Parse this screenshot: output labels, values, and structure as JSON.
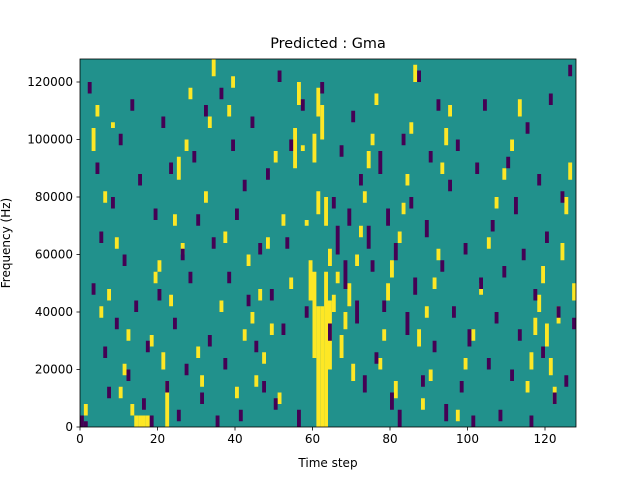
{
  "chart_data": {
    "type": "heatmap",
    "title": "Predicted : Gma",
    "xlabel": "Time step",
    "ylabel": "Frequency (Hz)",
    "xlim": [
      0,
      128
    ],
    "ylim": [
      0,
      128000
    ],
    "x_ticks": [
      0,
      20,
      40,
      60,
      80,
      100,
      120
    ],
    "y_ticks": [
      0,
      20000,
      40000,
      60000,
      80000,
      100000,
      120000
    ],
    "x_tick_labels": [
      "0",
      "20",
      "40",
      "60",
      "80",
      "100",
      "120"
    ],
    "y_tick_labels": [
      "0",
      "20000",
      "40000",
      "60000",
      "80000",
      "100000",
      "120000"
    ],
    "grid": false,
    "colors": {
      "background": "#21918c",
      "high": "#fde725",
      "low": "#440154"
    },
    "value_levels": {
      "background": 0,
      "high": 1,
      "low": -1
    },
    "cell_width_steps": 1,
    "cell_height_hz": 2000,
    "high_cells": [
      [
        61,
        0,
        42
      ],
      [
        62,
        0,
        42
      ],
      [
        63,
        0,
        54
      ],
      [
        60,
        24,
        54
      ],
      [
        64,
        20,
        44
      ],
      [
        59,
        44,
        58
      ],
      [
        58,
        70,
        72
      ],
      [
        64,
        56,
        62
      ],
      [
        61,
        74,
        82
      ],
      [
        63,
        70,
        80
      ],
      [
        60,
        92,
        102
      ],
      [
        62,
        100,
        112
      ],
      [
        61,
        108,
        118
      ],
      [
        55,
        90,
        104
      ],
      [
        56,
        112,
        120
      ],
      [
        57,
        96,
        98
      ],
      [
        1,
        4,
        8
      ],
      [
        3,
        96,
        104
      ],
      [
        4,
        108,
        112
      ],
      [
        5,
        38,
        42
      ],
      [
        6,
        78,
        82
      ],
      [
        7,
        44,
        48
      ],
      [
        8,
        104,
        106
      ],
      [
        9,
        62,
        66
      ],
      [
        10,
        10,
        14
      ],
      [
        11,
        18,
        22
      ],
      [
        12,
        30,
        34
      ],
      [
        13,
        4,
        8
      ],
      [
        14,
        0,
        4
      ],
      [
        15,
        0,
        4
      ],
      [
        16,
        0,
        4
      ],
      [
        17,
        0,
        4
      ],
      [
        18,
        28,
        32
      ],
      [
        19,
        50,
        54
      ],
      [
        20,
        54,
        58
      ],
      [
        21,
        20,
        26
      ],
      [
        22,
        0,
        16
      ],
      [
        23,
        42,
        46
      ],
      [
        24,
        70,
        74
      ],
      [
        25,
        86,
        94
      ],
      [
        26,
        60,
        64
      ],
      [
        27,
        96,
        100
      ],
      [
        28,
        114,
        118
      ],
      [
        30,
        24,
        28
      ],
      [
        31,
        14,
        18
      ],
      [
        32,
        78,
        82
      ],
      [
        33,
        104,
        108
      ],
      [
        34,
        122,
        128
      ],
      [
        36,
        40,
        44
      ],
      [
        37,
        64,
        68
      ],
      [
        38,
        108,
        112
      ],
      [
        39,
        118,
        122
      ],
      [
        40,
        10,
        14
      ],
      [
        42,
        30,
        34
      ],
      [
        43,
        56,
        60
      ],
      [
        44,
        36,
        40
      ],
      [
        45,
        14,
        18
      ],
      [
        46,
        44,
        48
      ],
      [
        47,
        22,
        26
      ],
      [
        48,
        62,
        66
      ],
      [
        49,
        32,
        36
      ],
      [
        50,
        92,
        96
      ],
      [
        51,
        8,
        12
      ],
      [
        52,
        70,
        74
      ],
      [
        54,
        48,
        52
      ],
      [
        65,
        40,
        46
      ],
      [
        66,
        50,
        54
      ],
      [
        67,
        24,
        32
      ],
      [
        68,
        34,
        40
      ],
      [
        69,
        42,
        50
      ],
      [
        70,
        16,
        22
      ],
      [
        71,
        56,
        60
      ],
      [
        72,
        66,
        70
      ],
      [
        73,
        78,
        82
      ],
      [
        74,
        90,
        96
      ],
      [
        75,
        98,
        102
      ],
      [
        76,
        112,
        116
      ],
      [
        77,
        20,
        24
      ],
      [
        78,
        30,
        34
      ],
      [
        79,
        44,
        50
      ],
      [
        80,
        52,
        58
      ],
      [
        81,
        10,
        16
      ],
      [
        82,
        64,
        68
      ],
      [
        83,
        74,
        78
      ],
      [
        84,
        84,
        88
      ],
      [
        85,
        102,
        106
      ],
      [
        86,
        120,
        126
      ],
      [
        87,
        28,
        34
      ],
      [
        88,
        6,
        10
      ],
      [
        89,
        38,
        42
      ],
      [
        90,
        16,
        20
      ],
      [
        91,
        48,
        52
      ],
      [
        92,
        58,
        62
      ],
      [
        93,
        88,
        92
      ],
      [
        94,
        98,
        104
      ],
      [
        95,
        108,
        112
      ],
      [
        97,
        2,
        6
      ],
      [
        99,
        20,
        24
      ],
      [
        101,
        30,
        34
      ],
      [
        103,
        46,
        50
      ],
      [
        105,
        62,
        66
      ],
      [
        107,
        76,
        80
      ],
      [
        109,
        86,
        90
      ],
      [
        111,
        96,
        100
      ],
      [
        113,
        108,
        114
      ],
      [
        115,
        12,
        16
      ],
      [
        116,
        20,
        26
      ],
      [
        117,
        32,
        38
      ],
      [
        118,
        40,
        46
      ],
      [
        119,
        50,
        56
      ],
      [
        120,
        28,
        36
      ],
      [
        121,
        18,
        24
      ],
      [
        122,
        8,
        14
      ],
      [
        123,
        36,
        42
      ],
      [
        124,
        58,
        64
      ],
      [
        125,
        74,
        80
      ],
      [
        126,
        86,
        92
      ],
      [
        127,
        44,
        50
      ]
    ],
    "low_cells": [
      [
        0,
        0,
        4
      ],
      [
        1,
        0,
        2
      ],
      [
        2,
        116,
        120
      ],
      [
        3,
        46,
        50
      ],
      [
        4,
        88,
        92
      ],
      [
        5,
        64,
        68
      ],
      [
        6,
        24,
        28
      ],
      [
        7,
        10,
        14
      ],
      [
        8,
        76,
        80
      ],
      [
        9,
        34,
        38
      ],
      [
        10,
        98,
        102
      ],
      [
        11,
        56,
        60
      ],
      [
        12,
        16,
        20
      ],
      [
        13,
        110,
        114
      ],
      [
        14,
        40,
        44
      ],
      [
        15,
        84,
        88
      ],
      [
        16,
        6,
        10
      ],
      [
        17,
        26,
        30
      ],
      [
        18,
        0,
        4
      ],
      [
        19,
        72,
        76
      ],
      [
        20,
        44,
        48
      ],
      [
        21,
        104,
        108
      ],
      [
        22,
        12,
        16
      ],
      [
        23,
        88,
        92
      ],
      [
        24,
        34,
        38
      ],
      [
        25,
        2,
        6
      ],
      [
        26,
        58,
        62
      ],
      [
        27,
        18,
        22
      ],
      [
        28,
        50,
        54
      ],
      [
        29,
        92,
        96
      ],
      [
        30,
        70,
        74
      ],
      [
        31,
        8,
        12
      ],
      [
        32,
        108,
        112
      ],
      [
        33,
        28,
        32
      ],
      [
        34,
        62,
        66
      ],
      [
        35,
        0,
        4
      ],
      [
        36,
        114,
        118
      ],
      [
        37,
        20,
        24
      ],
      [
        38,
        50,
        54
      ],
      [
        39,
        96,
        100
      ],
      [
        40,
        72,
        76
      ],
      [
        41,
        2,
        6
      ],
      [
        42,
        82,
        86
      ],
      [
        43,
        42,
        46
      ],
      [
        44,
        104,
        108
      ],
      [
        45,
        26,
        30
      ],
      [
        46,
        60,
        64
      ],
      [
        47,
        12,
        16
      ],
      [
        48,
        86,
        90
      ],
      [
        49,
        44,
        48
      ],
      [
        50,
        6,
        10
      ],
      [
        51,
        120,
        124
      ],
      [
        52,
        32,
        36
      ],
      [
        53,
        62,
        66
      ],
      [
        54,
        96,
        100
      ],
      [
        56,
        0,
        6
      ],
      [
        57,
        110,
        114
      ],
      [
        58,
        38,
        42
      ],
      [
        62,
        116,
        120
      ],
      [
        64,
        30,
        36
      ],
      [
        65,
        76,
        80
      ],
      [
        66,
        60,
        70
      ],
      [
        67,
        94,
        98
      ],
      [
        68,
        48,
        58
      ],
      [
        69,
        70,
        76
      ],
      [
        70,
        106,
        110
      ],
      [
        71,
        36,
        44
      ],
      [
        72,
        84,
        88
      ],
      [
        73,
        12,
        18
      ],
      [
        74,
        62,
        70
      ],
      [
        75,
        54,
        58
      ],
      [
        76,
        22,
        26
      ],
      [
        77,
        88,
        96
      ],
      [
        78,
        40,
        44
      ],
      [
        79,
        70,
        76
      ],
      [
        80,
        6,
        12
      ],
      [
        81,
        58,
        64
      ],
      [
        82,
        0,
        6
      ],
      [
        83,
        98,
        102
      ],
      [
        84,
        32,
        40
      ],
      [
        85,
        76,
        80
      ],
      [
        86,
        46,
        52
      ],
      [
        87,
        120,
        124
      ],
      [
        88,
        14,
        18
      ],
      [
        89,
        66,
        72
      ],
      [
        90,
        92,
        96
      ],
      [
        91,
        26,
        30
      ],
      [
        92,
        110,
        114
      ],
      [
        93,
        54,
        58
      ],
      [
        94,
        2,
        8
      ],
      [
        95,
        82,
        86
      ],
      [
        96,
        38,
        42
      ],
      [
        97,
        96,
        100
      ],
      [
        98,
        12,
        16
      ],
      [
        99,
        60,
        64
      ],
      [
        100,
        28,
        34
      ],
      [
        101,
        0,
        4
      ],
      [
        102,
        88,
        92
      ],
      [
        103,
        48,
        52
      ],
      [
        104,
        110,
        114
      ],
      [
        105,
        20,
        24
      ],
      [
        106,
        68,
        72
      ],
      [
        107,
        36,
        40
      ],
      [
        108,
        2,
        6
      ],
      [
        109,
        52,
        56
      ],
      [
        110,
        90,
        94
      ],
      [
        111,
        16,
        20
      ],
      [
        112,
        74,
        80
      ],
      [
        113,
        30,
        34
      ],
      [
        114,
        58,
        62
      ],
      [
        115,
        102,
        106
      ],
      [
        116,
        0,
        4
      ],
      [
        117,
        44,
        48
      ],
      [
        118,
        84,
        88
      ],
      [
        119,
        24,
        28
      ],
      [
        120,
        64,
        68
      ],
      [
        121,
        112,
        116
      ],
      [
        122,
        8,
        12
      ],
      [
        123,
        38,
        42
      ],
      [
        124,
        78,
        82
      ],
      [
        125,
        14,
        18
      ],
      [
        126,
        122,
        126
      ],
      [
        127,
        34,
        38
      ]
    ]
  }
}
